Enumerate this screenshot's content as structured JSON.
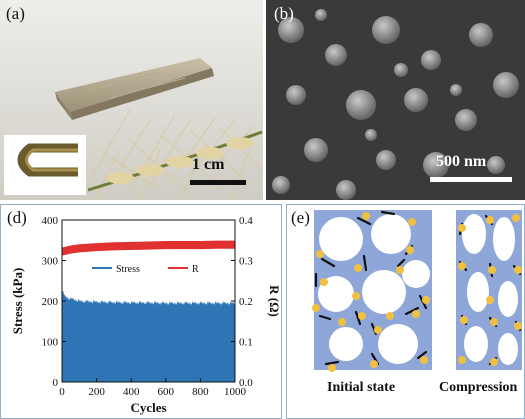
{
  "panels": {
    "a": {
      "label": "(a)",
      "scale_bar": "1 cm"
    },
    "b": {
      "label": "(b)",
      "scale_bar": "500 nm"
    },
    "d": {
      "label": "(d)"
    },
    "e": {
      "label": "(e)",
      "caption_left": "Initial state",
      "caption_right": "Compression"
    }
  },
  "chart_data": {
    "type": "area",
    "xlabel": "Cycles",
    "ylabel": "Stress (kPa)",
    "y2label": "R (Ω)",
    "xlim": [
      0,
      1000
    ],
    "ylim": [
      0,
      400
    ],
    "y2lim": [
      0.0,
      0.4
    ],
    "xticks": [
      "0",
      "200",
      "400",
      "600",
      "800",
      "1000"
    ],
    "yticks": [
      "0",
      "100",
      "200",
      "300",
      "400"
    ],
    "y2ticks": [
      "0.0",
      "0.1",
      "0.2",
      "0.3",
      "0.4"
    ],
    "legend_position": "top-center",
    "series": [
      {
        "name": "Stress",
        "axis": "left",
        "color": "#2e75b6",
        "x": [
          0,
          10,
          30,
          60,
          100,
          200,
          300,
          400,
          500,
          600,
          700,
          800,
          900,
          1000
        ],
        "values": [
          230,
          215,
          208,
          205,
          200,
          198,
          197,
          196,
          196,
          195,
          195,
          195,
          195,
          195
        ]
      },
      {
        "name": "R",
        "axis": "right",
        "color": "#e03030",
        "x": [
          0,
          50,
          100,
          200,
          300,
          400,
          500,
          600,
          700,
          800,
          900,
          1000
        ],
        "values": [
          0.32,
          0.325,
          0.328,
          0.331,
          0.333,
          0.334,
          0.335,
          0.336,
          0.336,
          0.336,
          0.337,
          0.337
        ]
      }
    ]
  }
}
